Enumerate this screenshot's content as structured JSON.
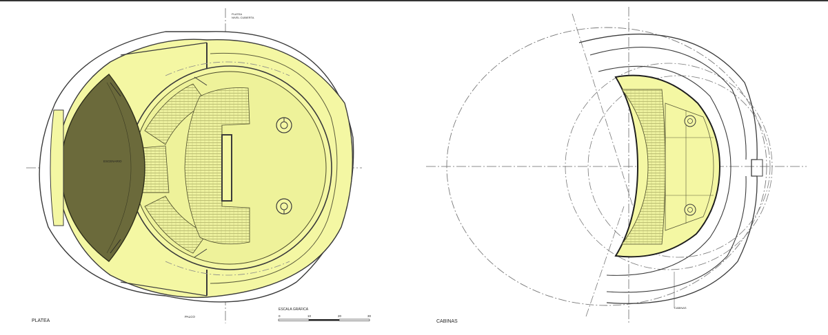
{
  "labels": {
    "left_title": "PLATEA",
    "right_title": "CABINAS",
    "stage": "ESCENARIO",
    "platea_top": "PLATEA",
    "platea_top_sub": "NIVEL CUBIERTA",
    "palco": "PALCO",
    "cabinas_callout": "CABINAS"
  },
  "scale": {
    "title": "ESCALA GRÁFICA",
    "ticks": [
      "0",
      "10",
      "20",
      "30"
    ]
  },
  "colors": {
    "fill_yellow": "#f4f7a3",
    "stage_dark": "#6b6a3b",
    "line": "#3a3a3a"
  }
}
